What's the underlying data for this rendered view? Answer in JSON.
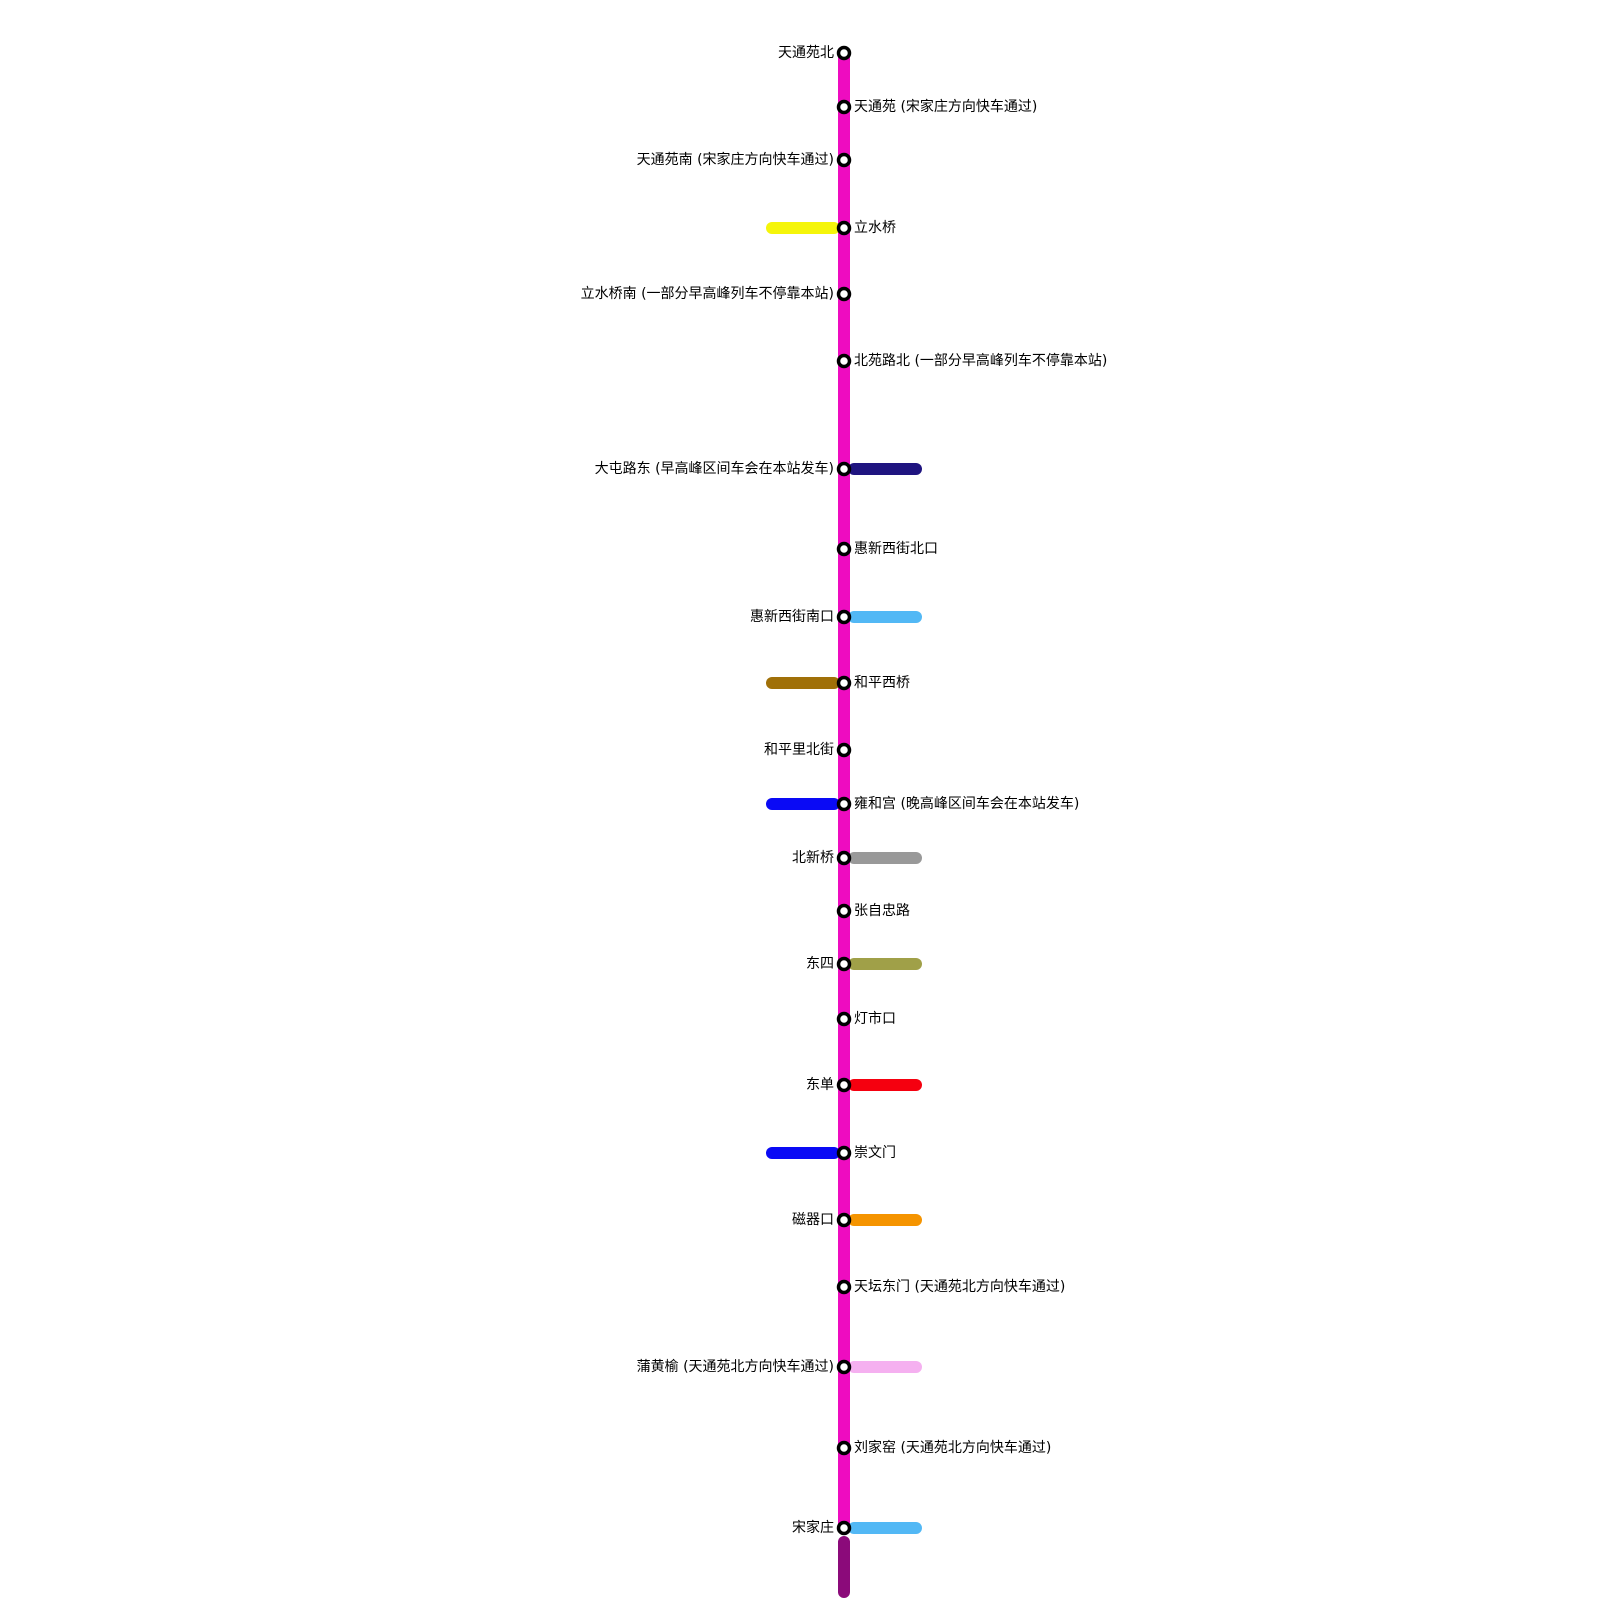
{
  "line": {
    "color": "#ee0cc0",
    "continuation_color": "#8b0a7a",
    "stations": [
      {
        "name": "天通苑北",
        "label_side": "left"
      },
      {
        "name": "天通苑 (宋家庄方向快车通过)",
        "label_side": "right"
      },
      {
        "name": "天通苑南 (宋家庄方向快车通过)",
        "label_side": "left"
      },
      {
        "name": "立水桥",
        "label_side": "right",
        "transfer": {
          "side": "left",
          "color": "#f5f50a"
        }
      },
      {
        "name": "立水桥南 (一部分早高峰列车不停靠本站)",
        "label_side": "left"
      },
      {
        "name": "北苑路北 (一部分早高峰列车不停靠本站)",
        "label_side": "right"
      },
      {
        "name": "大屯路东 (早高峰区间车会在本站发车)",
        "label_side": "left",
        "transfer": {
          "side": "right",
          "color": "#1f1480"
        }
      },
      {
        "name": "惠新西街北口",
        "label_side": "right"
      },
      {
        "name": "惠新西街南口",
        "label_side": "left",
        "transfer": {
          "side": "right",
          "color": "#52b8f5"
        }
      },
      {
        "name": "和平西桥",
        "label_side": "right",
        "transfer": {
          "side": "left",
          "color": "#a07008"
        }
      },
      {
        "name": "和平里北街",
        "label_side": "left"
      },
      {
        "name": "雍和宫 (晚高峰区间车会在本站发车)",
        "label_side": "right",
        "transfer": {
          "side": "left",
          "color": "#0a0af5"
        }
      },
      {
        "name": "北新桥",
        "label_side": "left",
        "transfer": {
          "side": "right",
          "color": "#999999"
        }
      },
      {
        "name": "张自忠路",
        "label_side": "right"
      },
      {
        "name": "东四",
        "label_side": "left",
        "transfer": {
          "side": "right",
          "color": "#a0a048"
        }
      },
      {
        "name": "灯市口",
        "label_side": "right"
      },
      {
        "name": "东单",
        "label_side": "left",
        "transfer": {
          "side": "right",
          "color": "#f5000f"
        }
      },
      {
        "name": "崇文门",
        "label_side": "right",
        "transfer": {
          "side": "left",
          "color": "#0a0af5"
        }
      },
      {
        "name": "磁器口",
        "label_side": "left",
        "transfer": {
          "side": "right",
          "color": "#f59400"
        }
      },
      {
        "name": "天坛东门 (天通苑北方向快车通过)",
        "label_side": "right"
      },
      {
        "name": "蒲黄榆 (天通苑北方向快车通过)",
        "label_side": "left",
        "transfer": {
          "side": "right",
          "color": "#f5b0f0"
        }
      },
      {
        "name": "刘家窑 (天通苑北方向快车通过)",
        "label_side": "right"
      },
      {
        "name": "宋家庄",
        "label_side": "left",
        "transfer": {
          "side": "right",
          "color": "#52b8f5"
        }
      }
    ]
  }
}
